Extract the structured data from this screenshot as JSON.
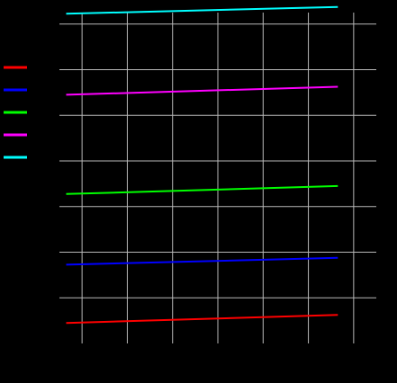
{
  "chart_data": {
    "type": "line",
    "title": "",
    "xlabel": "",
    "ylabel": "",
    "grid": true,
    "legend_position": "left",
    "xlim": [
      0,
      14
    ],
    "ylim": [
      0,
      14.5
    ],
    "xticks": [
      1,
      3,
      5,
      7,
      9,
      11,
      13
    ],
    "yticks": [
      2,
      4,
      6,
      8,
      10,
      12,
      14
    ],
    "x": [
      0.3,
      12.3
    ],
    "series": [
      {
        "color": "#ff0000",
        "values": [
          0.9,
          1.25
        ]
      },
      {
        "color": "#0000ff",
        "values": [
          3.45,
          3.75
        ]
      },
      {
        "color": "#00ff00",
        "values": [
          6.55,
          6.9
        ]
      },
      {
        "color": "#ff00ff",
        "values": [
          10.9,
          11.25
        ]
      },
      {
        "color": "#00ffff",
        "values": [
          14.45,
          14.75
        ]
      }
    ]
  }
}
